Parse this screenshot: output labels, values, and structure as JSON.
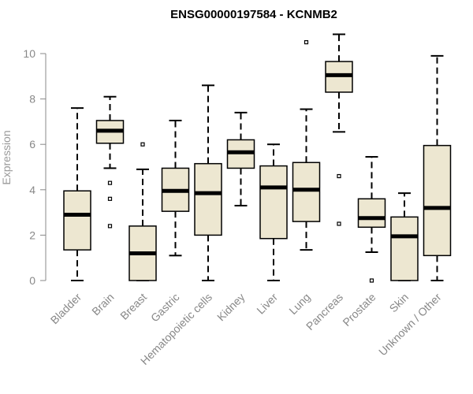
{
  "chart_data": {
    "type": "box",
    "title": "ENSG00000197584 - KCNMB2",
    "ylabel": "Expression",
    "xlabel": "",
    "ylim": [
      0,
      10.5
    ],
    "yticks": [
      0,
      2,
      4,
      6,
      8,
      10
    ],
    "grid": false,
    "colors": {
      "box_fill": "#ede7d1",
      "stroke": "#000000",
      "axis": "#888888"
    },
    "categories": [
      "Bladder",
      "Brain",
      "Breast",
      "Gastric",
      "Hematopoietic cells",
      "Kidney",
      "Liver",
      "Lung",
      "Pancreas",
      "Prostate",
      "Skin",
      "Unknown / Other"
    ],
    "boxes": [
      {
        "category": "Bladder",
        "min": 0,
        "q1": 1.35,
        "median": 2.9,
        "q3": 3.95,
        "max": 7.6,
        "outliers": []
      },
      {
        "category": "Brain",
        "min": 4.95,
        "q1": 6.05,
        "median": 6.6,
        "q3": 7.05,
        "max": 8.1,
        "outliers": [
          4.3,
          3.6,
          2.4
        ]
      },
      {
        "category": "Breast",
        "min": 0,
        "q1": 0,
        "median": 1.2,
        "q3": 2.4,
        "max": 4.9,
        "outliers": [
          6.0
        ]
      },
      {
        "category": "Gastric",
        "min": 1.1,
        "q1": 3.05,
        "median": 3.95,
        "q3": 4.95,
        "max": 7.05,
        "outliers": []
      },
      {
        "category": "Hematopoietic cells",
        "min": 0,
        "q1": 2.0,
        "median": 3.85,
        "q3": 5.15,
        "max": 8.6,
        "outliers": []
      },
      {
        "category": "Kidney",
        "min": 3.3,
        "q1": 4.95,
        "median": 5.65,
        "q3": 6.2,
        "max": 7.4,
        "outliers": []
      },
      {
        "category": "Liver",
        "min": 0,
        "q1": 1.85,
        "median": 4.1,
        "q3": 5.05,
        "max": 6.0,
        "outliers": []
      },
      {
        "category": "Lung",
        "min": 1.35,
        "q1": 2.6,
        "median": 4.0,
        "q3": 5.2,
        "max": 7.55,
        "outliers": [
          10.5
        ]
      },
      {
        "category": "Pancreas",
        "min": 6.55,
        "q1": 8.3,
        "median": 9.05,
        "q3": 9.65,
        "max": 10.85,
        "outliers": [
          4.6,
          2.5
        ]
      },
      {
        "category": "Prostate",
        "min": 1.25,
        "q1": 2.35,
        "median": 2.75,
        "q3": 3.6,
        "max": 5.45,
        "outliers": [
          0
        ]
      },
      {
        "category": "Skin",
        "min": 0,
        "q1": 0,
        "median": 1.95,
        "q3": 2.8,
        "max": 3.85,
        "outliers": []
      },
      {
        "category": "Unknown / Other",
        "min": 0,
        "q1": 1.1,
        "median": 3.2,
        "q3": 5.95,
        "max": 9.9,
        "outliers": []
      }
    ]
  }
}
